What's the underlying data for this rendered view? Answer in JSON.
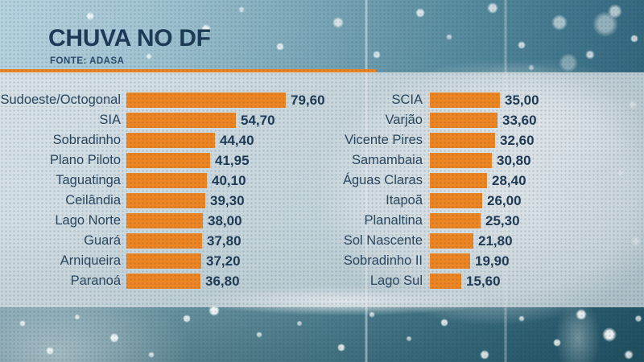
{
  "header": {
    "title": "CHUVA NO DF",
    "source": "FONTE: ADASA"
  },
  "chart_data": {
    "type": "bar",
    "orientation": "horizontal",
    "title": "CHUVA NO DF",
    "source_note": "FONTE: ADASA",
    "grid": "off",
    "legend": "none",
    "scale_max": 80,
    "value_format": "comma-decimal",
    "columns": [
      {
        "items": [
          {
            "label": "Sudoeste/Octogonal",
            "value": 79.6,
            "display": "79,60"
          },
          {
            "label": "SIA",
            "value": 54.7,
            "display": "54,70"
          },
          {
            "label": "Sobradinho",
            "value": 44.4,
            "display": "44,40"
          },
          {
            "label": "Plano Piloto",
            "value": 41.95,
            "display": "41,95"
          },
          {
            "label": "Taguatinga",
            "value": 40.1,
            "display": "40,10"
          },
          {
            "label": "Ceilândia",
            "value": 39.3,
            "display": "39,30"
          },
          {
            "label": "Lago Norte",
            "value": 38.0,
            "display": "38,00"
          },
          {
            "label": "Guará",
            "value": 37.8,
            "display": "37,80"
          },
          {
            "label": "Arniqueira",
            "value": 37.2,
            "display": "37,20"
          },
          {
            "label": "Paranoá",
            "value": 36.8,
            "display": "36,80"
          }
        ]
      },
      {
        "items": [
          {
            "label": "SCIA",
            "value": 35.0,
            "display": "35,00"
          },
          {
            "label": "Varjão",
            "value": 33.6,
            "display": "33,60"
          },
          {
            "label": "Vicente Pires",
            "value": 32.6,
            "display": "32,60"
          },
          {
            "label": "Samambaia",
            "value": 30.8,
            "display": "30,80"
          },
          {
            "label": "Águas Claras",
            "value": 28.4,
            "display": "28,40"
          },
          {
            "label": "Itapoã",
            "value": 26.0,
            "display": "26,00"
          },
          {
            "label": "Planaltina",
            "value": 25.3,
            "display": "25,30"
          },
          {
            "label": "Sol Nascente",
            "value": 21.8,
            "display": "21,80"
          },
          {
            "label": "Sobradinho II",
            "value": 19.9,
            "display": "19,90"
          },
          {
            "label": "Lago Sul",
            "value": 15.6,
            "display": "15,60"
          }
        ]
      }
    ]
  },
  "colors": {
    "bar_orange": "#EE8523",
    "rule_orange": "#EE8523",
    "title_navy": "#1D3A56",
    "label_navy": "#2B475F",
    "value_navy": "#1F3A54"
  }
}
